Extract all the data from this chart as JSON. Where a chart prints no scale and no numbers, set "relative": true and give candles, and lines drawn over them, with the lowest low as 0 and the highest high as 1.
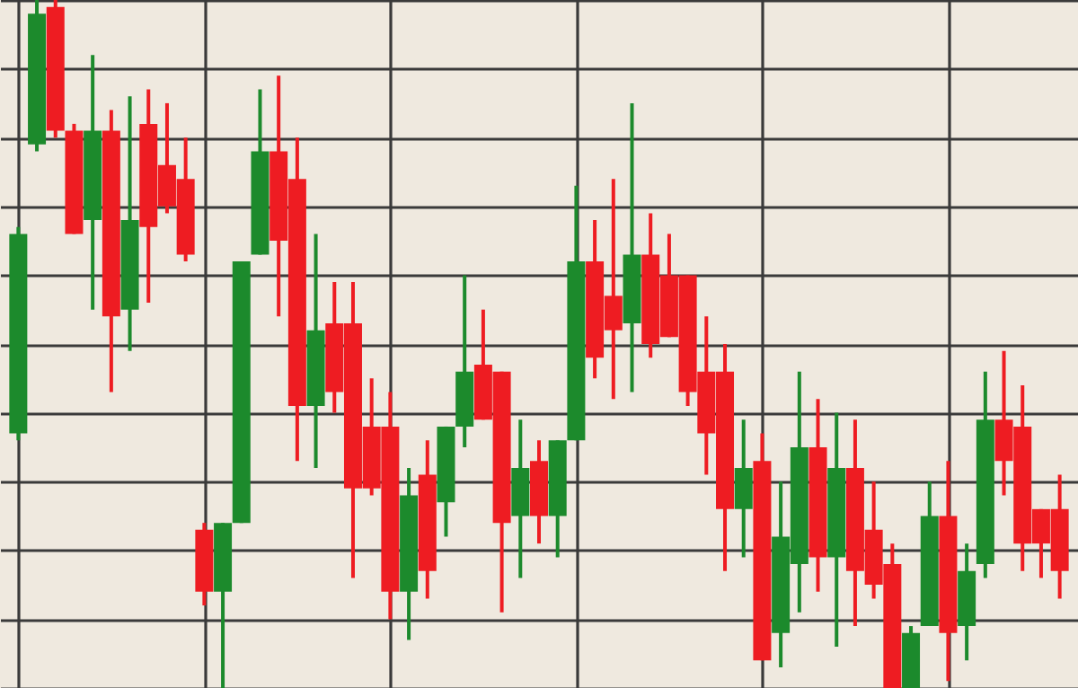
{
  "chart_data": {
    "type": "candlestick",
    "relative": true,
    "grid": true,
    "categories": [
      null,
      null,
      null,
      null,
      null,
      null,
      null,
      null,
      null,
      null,
      null,
      null,
      null,
      null,
      null,
      null,
      null,
      null,
      null,
      null,
      null,
      null,
      null,
      null,
      null,
      null,
      null,
      null,
      null,
      null,
      null,
      null,
      null,
      null,
      null,
      null,
      null,
      null,
      null,
      null,
      null,
      null,
      null,
      null,
      null,
      null,
      null,
      null,
      null,
      null,
      null,
      null,
      null,
      null,
      null,
      null,
      null
    ],
    "ohlc": [
      [
        0.37,
        0.67,
        0.36,
        0.66
      ],
      [
        0.79,
        1.0,
        0.78,
        0.98
      ],
      [
        0.99,
        1.0,
        0.8,
        0.81
      ],
      [
        0.81,
        0.82,
        0.66,
        0.66
      ],
      [
        0.68,
        0.92,
        0.55,
        0.81
      ],
      [
        0.81,
        0.84,
        0.43,
        0.54
      ],
      [
        0.55,
        0.86,
        0.49,
        0.68
      ],
      [
        0.82,
        0.87,
        0.56,
        0.67
      ],
      [
        0.76,
        0.85,
        0.69,
        0.7
      ],
      [
        0.74,
        0.8,
        0.62,
        0.63
      ],
      [
        0.23,
        0.24,
        0.12,
        0.14
      ],
      [
        0.14,
        0.24,
        0.0,
        0.24
      ],
      [
        0.24,
        0.62,
        0.24,
        0.62
      ],
      [
        0.63,
        0.87,
        0.63,
        0.78
      ],
      [
        0.78,
        0.89,
        0.54,
        0.65
      ],
      [
        0.74,
        0.8,
        0.33,
        0.41
      ],
      [
        0.41,
        0.66,
        0.32,
        0.52
      ],
      [
        0.53,
        0.59,
        0.4,
        0.43
      ],
      [
        0.53,
        0.59,
        0.16,
        0.29
      ],
      [
        0.38,
        0.45,
        0.28,
        0.29
      ],
      [
        0.38,
        0.43,
        0.1,
        0.14
      ],
      [
        0.14,
        0.32,
        0.07,
        0.28
      ],
      [
        0.31,
        0.36,
        0.13,
        0.17
      ],
      [
        0.27,
        0.38,
        0.22,
        0.38
      ],
      [
        0.38,
        0.6,
        0.35,
        0.46
      ],
      [
        0.47,
        0.55,
        0.39,
        0.39
      ],
      [
        0.46,
        0.46,
        0.11,
        0.24
      ],
      [
        0.25,
        0.39,
        0.16,
        0.32
      ],
      [
        0.33,
        0.36,
        0.21,
        0.25
      ],
      [
        0.25,
        0.36,
        0.19,
        0.36
      ],
      [
        0.36,
        0.73,
        0.36,
        0.62
      ],
      [
        0.62,
        0.68,
        0.45,
        0.48
      ],
      [
        0.57,
        0.74,
        0.42,
        0.52
      ],
      [
        0.53,
        0.85,
        0.43,
        0.63
      ],
      [
        0.63,
        0.69,
        0.48,
        0.5
      ],
      [
        0.6,
        0.66,
        0.51,
        0.51
      ],
      [
        0.6,
        0.6,
        0.41,
        0.43
      ],
      [
        0.46,
        0.54,
        0.31,
        0.37
      ],
      [
        0.46,
        0.5,
        0.17,
        0.26
      ],
      [
        0.26,
        0.39,
        0.19,
        0.32
      ],
      [
        0.33,
        0.37,
        0.04,
        0.04
      ],
      [
        0.08,
        0.3,
        0.03,
        0.22
      ],
      [
        0.18,
        0.46,
        0.11,
        0.35
      ],
      [
        0.35,
        0.42,
        0.14,
        0.19
      ],
      [
        0.19,
        0.4,
        0.06,
        0.32
      ],
      [
        0.32,
        0.39,
        0.09,
        0.17
      ],
      [
        0.23,
        0.3,
        0.13,
        0.15
      ],
      [
        0.18,
        0.21,
        0.0,
        0.0
      ],
      [
        0.0,
        0.09,
        0.0,
        0.08
      ],
      [
        0.09,
        0.3,
        0.09,
        0.25
      ],
      [
        0.25,
        0.33,
        0.01,
        0.08
      ],
      [
        0.09,
        0.21,
        0.04,
        0.17
      ],
      [
        0.18,
        0.46,
        0.16,
        0.39
      ],
      [
        0.39,
        0.49,
        0.28,
        0.33
      ],
      [
        0.38,
        0.44,
        0.17,
        0.21
      ],
      [
        0.26,
        0.26,
        0.16,
        0.21
      ],
      [
        0.26,
        0.31,
        0.13,
        0.17
      ]
    ],
    "colors": [
      "#1c8a2c",
      "#1c8a2c",
      "#ee1c22",
      "#ee1c22",
      "#1c8a2c",
      "#ee1c22",
      "#1c8a2c",
      "#ee1c22",
      "#ee1c22",
      "#ee1c22",
      "#ee1c22",
      "#1c8a2c",
      "#1c8a2c",
      "#1c8a2c",
      "#ee1c22",
      "#ee1c22",
      "#1c8a2c",
      "#ee1c22",
      "#ee1c22",
      "#ee1c22",
      "#ee1c22",
      "#1c8a2c",
      "#ee1c22",
      "#1c8a2c",
      "#1c8a2c",
      "#ee1c22",
      "#ee1c22",
      "#1c8a2c",
      "#ee1c22",
      "#1c8a2c",
      "#1c8a2c",
      "#ee1c22",
      "#ee1c22",
      "#1c8a2c",
      "#ee1c22",
      "#ee1c22",
      "#ee1c22",
      "#ee1c22",
      "#ee1c22",
      "#1c8a2c",
      "#ee1c22",
      "#1c8a2c",
      "#1c8a2c",
      "#ee1c22",
      "#1c8a2c",
      "#ee1c22",
      "#ee1c22",
      "#ee1c22",
      "#1c8a2c",
      "#1c8a2c",
      "#ee1c22",
      "#1c8a2c",
      "#1c8a2c",
      "#ee1c22",
      "#ee1c22",
      "#ee1c22",
      "#ee1c22"
    ]
  }
}
